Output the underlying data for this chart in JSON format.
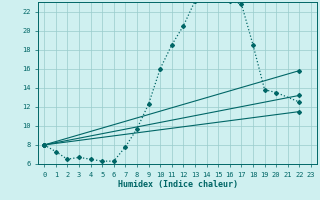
{
  "xlabel": "Humidex (Indice chaleur)",
  "bg_color": "#cff0f0",
  "grid_color": "#99cccc",
  "line_color": "#006666",
  "xlim": [
    -0.5,
    23.5
  ],
  "ylim": [
    6,
    23
  ],
  "yticks": [
    6,
    8,
    10,
    12,
    14,
    16,
    18,
    20,
    22
  ],
  "xticks": [
    0,
    1,
    2,
    3,
    4,
    5,
    6,
    7,
    8,
    9,
    10,
    11,
    12,
    13,
    14,
    15,
    16,
    17,
    18,
    19,
    20,
    21,
    22,
    23
  ],
  "xtick_labels": [
    "0",
    "1",
    "2",
    "3",
    "4",
    "5",
    "6",
    "7",
    "8",
    "9",
    "10",
    "11",
    "12",
    "13",
    "14",
    "15",
    "16",
    "17",
    "18",
    "19",
    "20",
    "21",
    "22",
    "23"
  ],
  "curves": [
    {
      "x": [
        0,
        1,
        2,
        3,
        4,
        5,
        6,
        7,
        8,
        9,
        10,
        11,
        12,
        13,
        14,
        15,
        16,
        17,
        18,
        19,
        20,
        22
      ],
      "y": [
        8.0,
        7.3,
        6.5,
        6.7,
        6.5,
        6.3,
        6.3,
        7.8,
        9.7,
        12.3,
        16.0,
        18.5,
        20.5,
        23.1,
        23.3,
        23.3,
        23.1,
        22.8,
        18.5,
        13.8,
        13.5,
        12.5
      ]
    },
    {
      "x": [
        0,
        22
      ],
      "y": [
        8.0,
        15.8
      ]
    },
    {
      "x": [
        0,
        22
      ],
      "y": [
        8.0,
        13.2
      ]
    },
    {
      "x": [
        0,
        22
      ],
      "y": [
        8.0,
        11.5
      ]
    }
  ]
}
